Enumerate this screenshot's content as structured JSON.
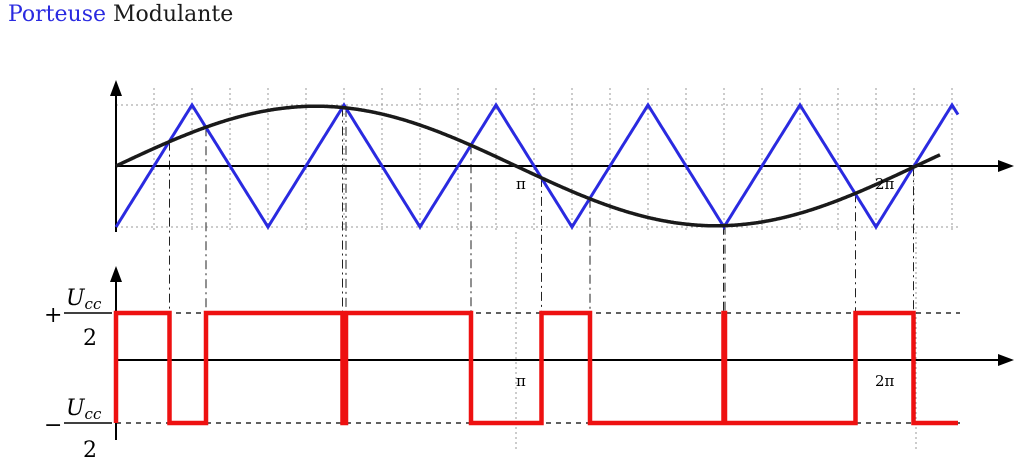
{
  "title": {
    "carrier_label": "Porteuse",
    "modulating_label": "Modulante"
  },
  "colors": {
    "carrier": "#2a2ae0",
    "modulating": "#1a1a1a",
    "output": "#ee1111",
    "grid": "#999999",
    "axis": "#000000"
  },
  "top_plot": {
    "pi_label": "π",
    "two_pi_label": "2π",
    "carrier_peaks_per_period": 5
  },
  "bottom_plot": {
    "plus_sign": "+",
    "minus_sign": "−",
    "numerator": "U",
    "subscript": "cc",
    "denominator": "2",
    "pi_label": "π",
    "two_pi_label": "2π"
  }
}
